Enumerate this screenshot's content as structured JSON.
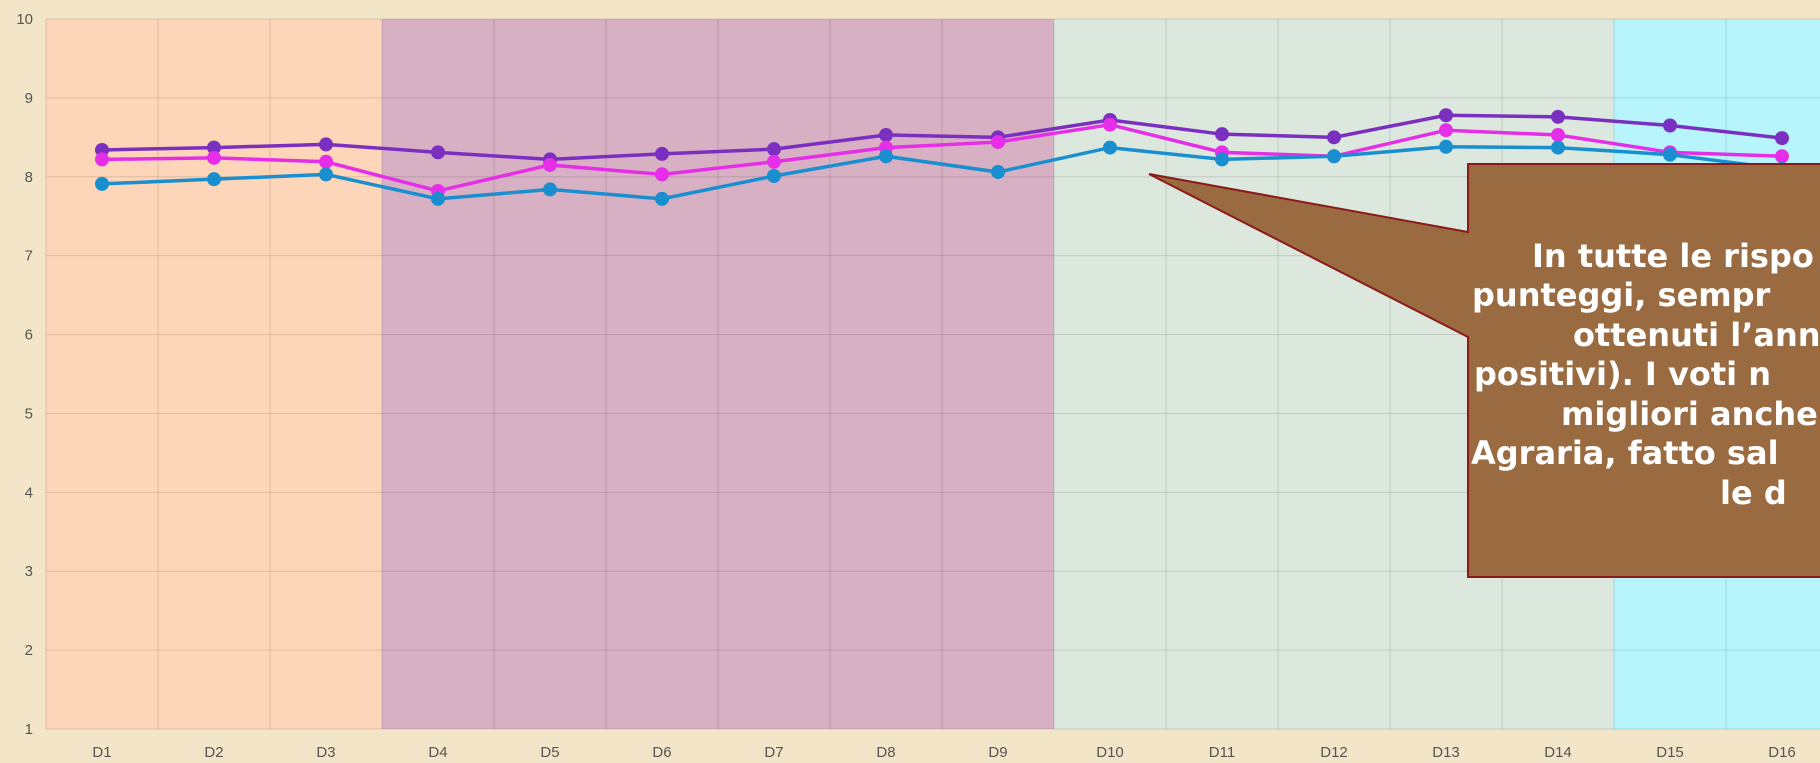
{
  "chart_data": {
    "type": "line",
    "categories": [
      "D1",
      "D2",
      "D3",
      "D4",
      "D5",
      "D6",
      "D7",
      "D8",
      "D9",
      "D10",
      "D11",
      "D12",
      "D13",
      "D14",
      "D15",
      "D16"
    ],
    "series": [
      {
        "color": "#7a2fc0",
        "values": [
          8.34,
          8.37,
          8.41,
          8.31,
          8.22,
          8.29,
          8.35,
          8.53,
          8.5,
          8.72,
          8.54,
          8.5,
          8.78,
          8.76,
          8.65,
          8.49
        ]
      },
      {
        "color": "#e62ee8",
        "values": [
          8.22,
          8.24,
          8.19,
          7.82,
          8.15,
          8.03,
          8.19,
          8.37,
          8.44,
          8.66,
          8.31,
          8.26,
          8.59,
          8.53,
          8.31,
          8.26
        ]
      },
      {
        "color": "#1a8fd0",
        "values": [
          7.91,
          7.97,
          8.03,
          7.72,
          7.84,
          7.72,
          8.01,
          8.26,
          8.06,
          8.37,
          8.22,
          8.26,
          8.38,
          8.37,
          8.28,
          8.1
        ]
      }
    ],
    "ylim": [
      1,
      10
    ],
    "yticks": [
      1,
      2,
      3,
      4,
      5,
      6,
      7,
      8,
      9,
      10
    ],
    "grid": true,
    "annotation": [
      "In tutte le rispo",
      "punteggi, sempr",
      "ottenuti l’ann",
      "positivi). I voti n",
      "migliori anche",
      "Agraria, fatto sal",
      "le d"
    ]
  }
}
